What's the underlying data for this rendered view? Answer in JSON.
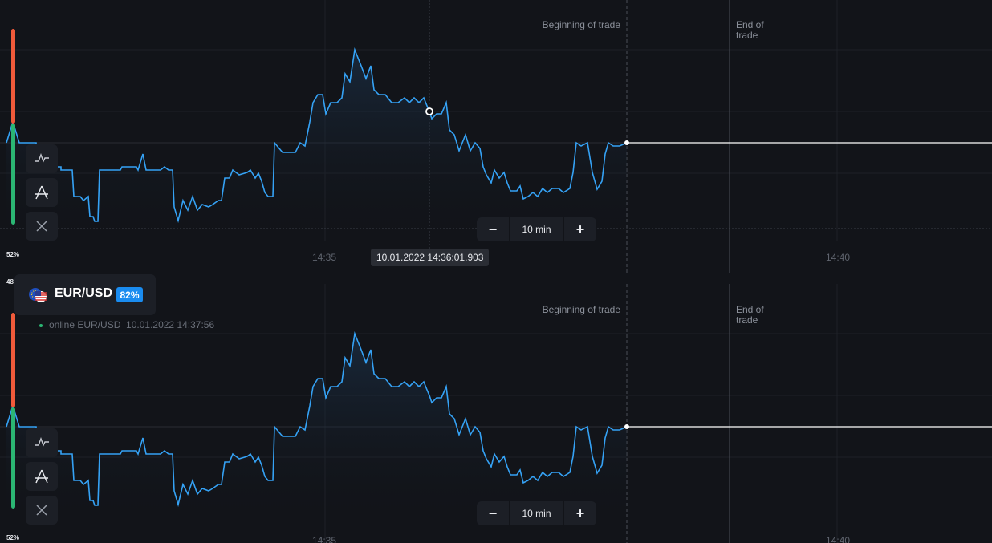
{
  "asset": {
    "symbol": "EUR/USD",
    "payout": "82%",
    "status_text": "online EUR/USD",
    "status_time": "10.01.2022 14:37:56"
  },
  "markers": {
    "begin": "Beginning of trade",
    "end": "End of trade"
  },
  "time_labels": [
    "14:35",
    "14:40"
  ],
  "crosshair_time": "10.01.2022 14:36:01.903",
  "zoom": {
    "minus": "−",
    "value": "10 min",
    "plus": "+"
  },
  "sentiment": {
    "top_pct": "52%",
    "mid_value": "48"
  },
  "colors": {
    "line": "#35a2f5",
    "up": "#2bb673",
    "down": "#f05a3a",
    "bg": "#121419",
    "panel": "#1c1f26",
    "badge": "#1a8cf0"
  },
  "tools": [
    "indicator-icon",
    "drawing-icon",
    "close-icon"
  ]
}
